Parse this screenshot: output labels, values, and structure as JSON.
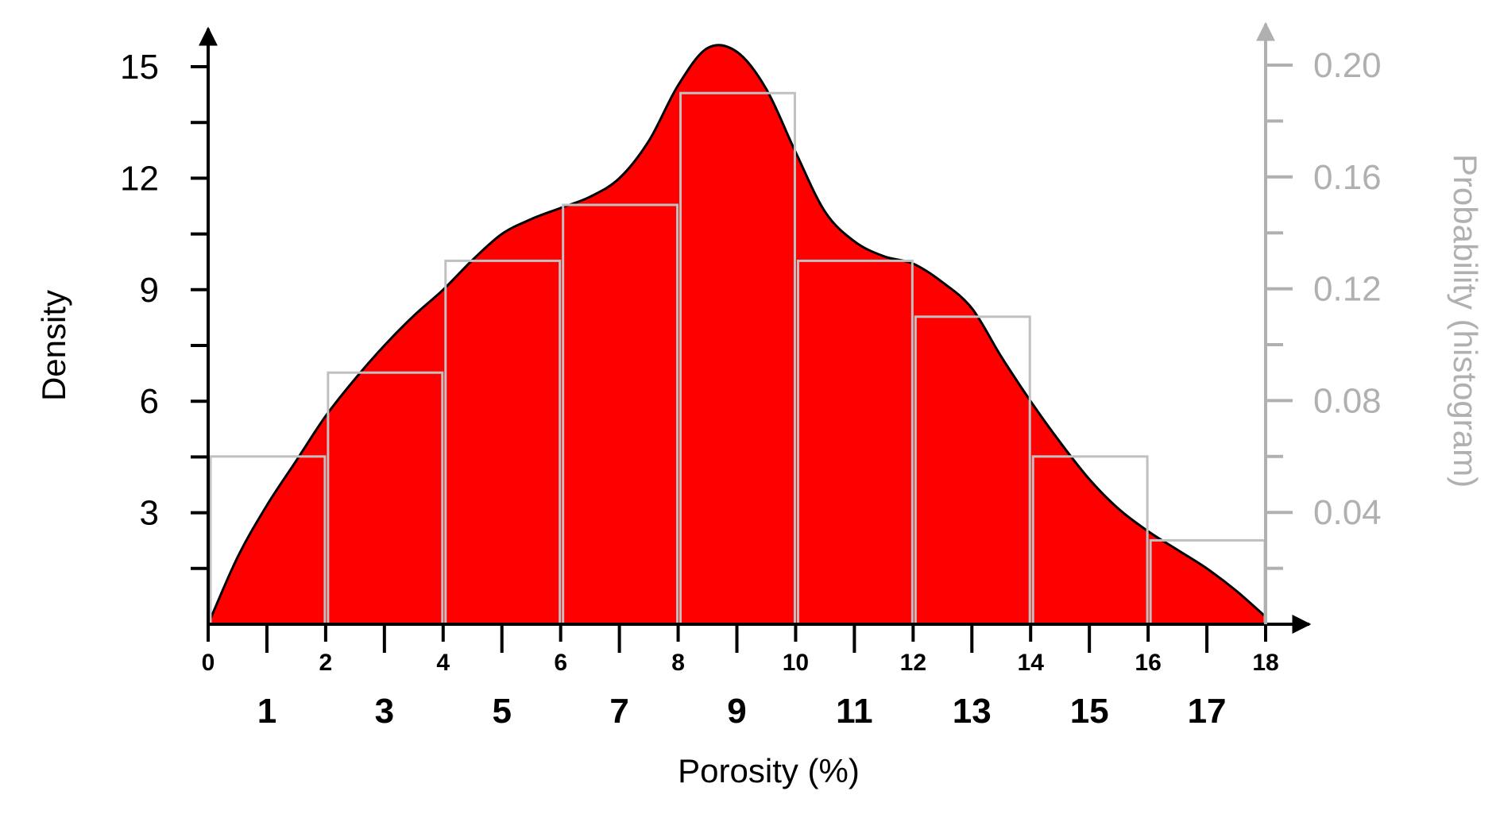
{
  "chart_data": {
    "type": "area",
    "xlabel": "Porosity (%)",
    "ylabel_left": "Density",
    "ylabel_right": "Probability (histogram)",
    "xlim": [
      0,
      18
    ],
    "ylim_left": [
      0,
      15
    ],
    "ylim_right": [
      0,
      0.2
    ],
    "x_ticks_major": [
      "0",
      "2",
      "4",
      "6",
      "8",
      "10",
      "12",
      "14",
      "16",
      "18"
    ],
    "x_ticks_minor": [
      "1",
      "3",
      "5",
      "7",
      "9",
      "11",
      "13",
      "15",
      "17"
    ],
    "y_ticks_left": [
      "3",
      "6",
      "9",
      "12",
      "15"
    ],
    "y_ticks_right": [
      "0.04",
      "0.08",
      "0.12",
      "0.16",
      "0.20"
    ],
    "density_curve": {
      "x": [
        0,
        0.5,
        1,
        1.5,
        2,
        2.5,
        3,
        3.5,
        4,
        4.5,
        5,
        5.5,
        6,
        6.5,
        7,
        7.5,
        8,
        8.5,
        9,
        9.5,
        10,
        10.5,
        11,
        11.5,
        12,
        12.5,
        13,
        13.5,
        14,
        14.5,
        15,
        15.5,
        16,
        16.5,
        17,
        17.5,
        18
      ],
      "y": [
        0.0,
        1.8,
        3.2,
        4.4,
        5.6,
        6.6,
        7.5,
        8.3,
        9.0,
        9.8,
        10.5,
        10.9,
        11.2,
        11.5,
        12.0,
        13.0,
        14.5,
        15.5,
        15.4,
        14.4,
        12.7,
        11.1,
        10.3,
        9.9,
        9.7,
        9.2,
        8.5,
        7.2,
        6.0,
        4.9,
        3.9,
        3.1,
        2.5,
        2.0,
        1.5,
        0.9,
        0.2
      ],
      "fill": "#ff0000",
      "stroke": "#000000"
    },
    "histogram": {
      "bins": [
        [
          0,
          2
        ],
        [
          2,
          4
        ],
        [
          4,
          6
        ],
        [
          6,
          8
        ],
        [
          8,
          10
        ],
        [
          10,
          12
        ],
        [
          12,
          14
        ],
        [
          14,
          16
        ],
        [
          16,
          18
        ]
      ],
      "probabilities": [
        0.06,
        0.09,
        0.13,
        0.15,
        0.19,
        0.13,
        0.11,
        0.06,
        0.03
      ],
      "stroke": "#c0c0c0"
    },
    "right_axis_color": "#b0b0b0",
    "legend": "none",
    "grid": false
  }
}
